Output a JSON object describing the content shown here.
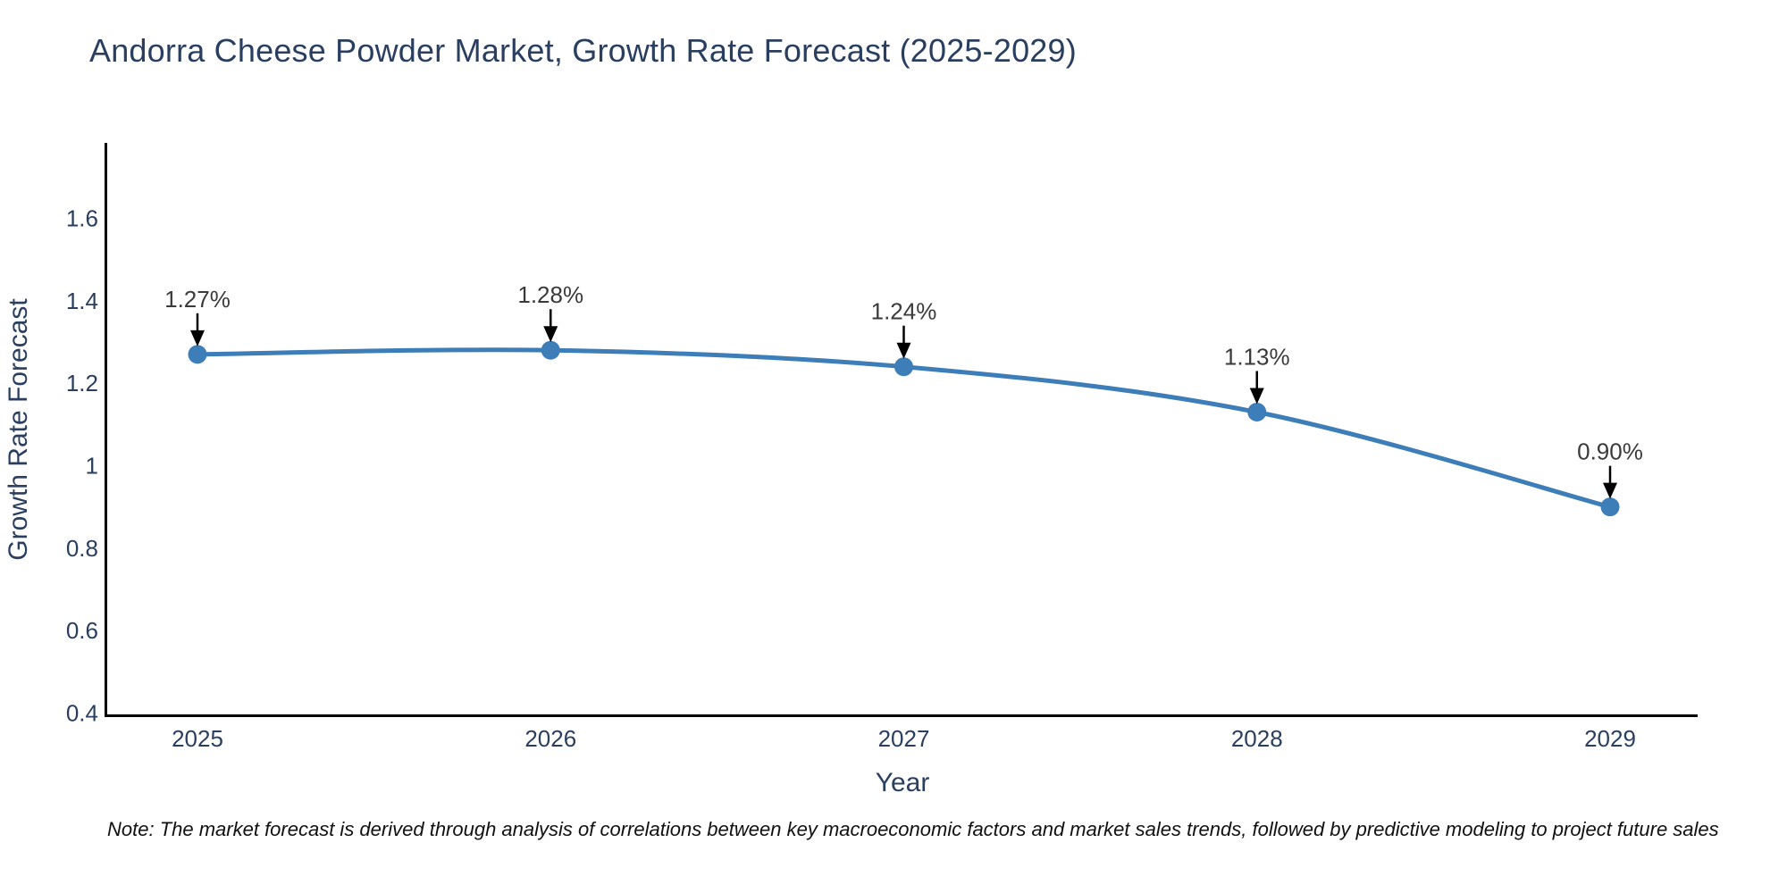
{
  "chart": {
    "title": "Andorra Cheese Powder Market, Growth Rate Forecast (2025-2029)"
  },
  "note": {
    "text": "Note: The market forecast is derived through analysis of correlations between key macroeconomic factors and market sales trends, followed by predictive modeling to project future sales"
  },
  "chart_data": {
    "type": "line",
    "title": "Andorra Cheese Powder Market, Growth Rate Forecast (2025-2029)",
    "x": [
      "2025",
      "2026",
      "2027",
      "2028",
      "2029"
    ],
    "y": [
      1.27,
      1.28,
      1.24,
      1.13,
      0.9
    ],
    "point_labels": [
      "1.27%",
      "1.28%",
      "1.24%",
      "1.13%",
      "0.90%"
    ],
    "xlabel": "Year",
    "ylabel": "Growth Rate Forecast",
    "yticks": [
      0.4,
      0.6,
      0.8,
      1,
      1.2,
      1.4,
      1.6
    ],
    "ytick_labels": [
      "0.4",
      "0.6",
      "0.8",
      "1",
      "1.2",
      "1.4",
      "1.6"
    ],
    "ylim": [
      0.39,
      1.79
    ],
    "grid": false,
    "legend": "none",
    "annotations": "down-arrow to each data point",
    "colors": {
      "line": "#3d7db8",
      "marker": "#3d7db8",
      "axis_line": "#000000",
      "tick_text": "#2a3f5f",
      "axis_title_text": "#2a3f5f",
      "title_text": "#2a3f5f",
      "annotation_text": "#3a3a3a",
      "annotation_arrow": "#000000",
      "note_text": "#111111",
      "background": "#ffffff"
    }
  }
}
